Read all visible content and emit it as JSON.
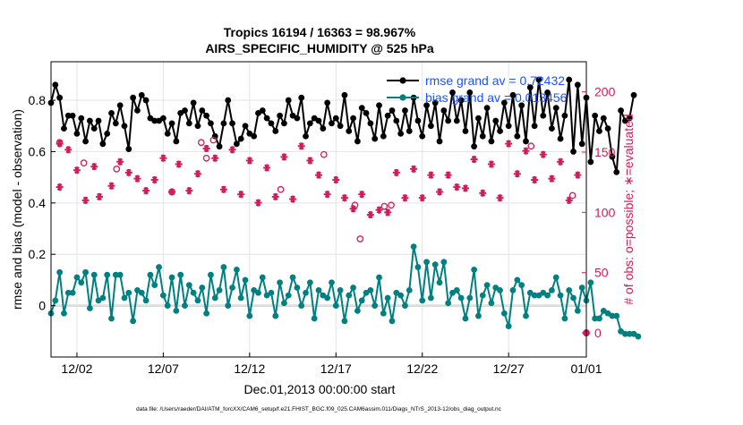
{
  "chart_data": {
    "type": "line",
    "title": "Tropics 16194 / 16363 = 98.967%",
    "subtitle": "AIRS_SPECIFIC_HUMIDITY @ 525 hPa",
    "xlabel": "Dec.01,2013 00:00:00 start",
    "ylabel_left": "rmse and bias (model - observation)",
    "ylabel_right": "# of obs: o=possible; ∗=evaluated",
    "footer": "data file: /Users/raeder/DAI/ATM_forcXX/CAM6_setup/f.e21.FHIST_BGC.f09_025.CAM6assim.011/Diags_NTrS_2013-12/obs_diag_output.nc",
    "xlim": [
      0.5,
      31.5
    ],
    "ylim_left": [
      -0.2,
      0.95
    ],
    "ylim_right": [
      -20,
      225
    ],
    "x_ticks": [
      {
        "x": 2,
        "label": "12/02"
      },
      {
        "x": 7,
        "label": "12/07"
      },
      {
        "x": 12,
        "label": "12/12"
      },
      {
        "x": 17,
        "label": "12/17"
      },
      {
        "x": 22,
        "label": "12/22"
      },
      {
        "x": 27,
        "label": "12/27"
      },
      {
        "x": 32,
        "label": "01/01"
      }
    ],
    "y_ticks_left": [
      {
        "v": 0,
        "label": "0"
      },
      {
        "v": 0.2,
        "label": "0.2"
      },
      {
        "v": 0.4,
        "label": "0.4"
      },
      {
        "v": 0.6,
        "label": "0.6"
      },
      {
        "v": 0.8,
        "label": "0.8"
      }
    ],
    "y_ticks_right": [
      {
        "v": 0,
        "label": "0"
      },
      {
        "v": 50,
        "label": "50"
      },
      {
        "v": 100,
        "label": "100"
      },
      {
        "v": 150,
        "label": "150"
      },
      {
        "v": 200,
        "label": "200"
      }
    ],
    "x_start": 0.5,
    "x_step": 0.25,
    "series": [
      {
        "name": "rmse grand av = 0.72432",
        "color": "#000000",
        "axis": "left",
        "values": [
          0.79,
          0.86,
          0.81,
          0.69,
          0.74,
          0.74,
          0.67,
          0.73,
          0.64,
          0.72,
          0.69,
          0.72,
          0.63,
          0.67,
          0.75,
          0.71,
          0.78,
          0.7,
          0.61,
          0.81,
          0.76,
          0.82,
          0.8,
          0.73,
          0.72,
          0.72,
          0.73,
          0.67,
          0.71,
          0.64,
          0.75,
          0.76,
          0.71,
          0.79,
          0.7,
          0.76,
          0.74,
          0.71,
          0.66,
          0.62,
          0.71,
          0.8,
          0.71,
          0.63,
          0.65,
          0.7,
          0.67,
          0.66,
          0.75,
          0.76,
          0.73,
          0.71,
          0.68,
          0.74,
          0.71,
          0.8,
          0.74,
          0.73,
          0.81,
          0.66,
          0.71,
          0.73,
          0.72,
          0.69,
          0.79,
          0.71,
          0.73,
          0.7,
          0.82,
          0.68,
          0.73,
          0.64,
          0.77,
          0.75,
          0.71,
          0.65,
          0.78,
          0.66,
          0.74,
          0.76,
          0.72,
          0.67,
          0.76,
          0.68,
          0.81,
          0.72,
          0.66,
          0.78,
          0.7,
          0.79,
          0.64,
          0.76,
          0.72,
          0.83,
          0.72,
          0.8,
          0.68,
          0.83,
          0.62,
          0.73,
          0.66,
          0.77,
          0.64,
          0.72,
          0.68,
          0.79,
          0.7,
          0.82,
          0.66,
          0.78,
          0.64,
          0.85,
          0.7,
          0.88,
          0.74,
          0.83,
          0.69,
          0.77,
          0.65,
          0.74,
          0.88,
          0.6,
          0.86,
          0.63,
          0.81,
          0.56,
          0.74,
          0.68,
          0.73,
          0.69,
          0.58,
          0.52,
          0.76,
          0.72,
          0.73,
          0.82
        ]
      },
      {
        "name": "bias grand av = 0.013456",
        "color": "#008080",
        "axis": "left",
        "values": [
          -0.03,
          0.02,
          0.13,
          -0.03,
          0.05,
          0.05,
          0.11,
          0.09,
          0.13,
          -0.01,
          0.12,
          0.02,
          0.03,
          0.12,
          -0.05,
          0.12,
          0.12,
          0.03,
          0.05,
          -0.06,
          0.06,
          0.05,
          0.02,
          0.12,
          0.08,
          0.15,
          0.04,
          0.0,
          0.11,
          -0.02,
          0.12,
          0.0,
          0.08,
          0.05,
          0.02,
          0.07,
          -0.03,
          0.12,
          0.03,
          0.06,
          0.15,
          0.0,
          0.07,
          0.14,
          0.03,
          0.1,
          -0.04,
          0.06,
          0.05,
          0.11,
          0.04,
          0.05,
          -0.04,
          0.09,
          0.01,
          0.04,
          0.11,
          0.07,
          0.0,
          0.05,
          0.09,
          -0.05,
          0.06,
          0.04,
          0.03,
          0.09,
          0.0,
          0.06,
          -0.06,
          0.04,
          0.07,
          -0.02,
          0.02,
          0.05,
          0.06,
          0.0,
          0.11,
          -0.03,
          0.03,
          -0.06,
          0.05,
          0.04,
          0.0,
          0.06,
          0.23,
          0.15,
          0.02,
          0.17,
          0.03,
          0.16,
          0.09,
          0.17,
          0.01,
          0.05,
          0.06,
          0.03,
          -0.05,
          0.03,
          0.14,
          -0.04,
          0.04,
          0.08,
          0.01,
          0.07,
          0.06,
          -0.03,
          -0.08,
          0.06,
          0.1,
          0.08,
          -0.04,
          0.05,
          0.04,
          0.04,
          0.05,
          0.04,
          0.06,
          0.11,
          0.04,
          -0.05,
          0.06,
          0.03,
          -0.02,
          0.07,
          0.02,
          0.09,
          -0.05,
          -0.05,
          -0.02,
          -0.03,
          -0.04,
          -0.04,
          -0.1,
          -0.11,
          -0.11,
          -0.11,
          -0.12
        ]
      }
    ],
    "obs_evaluated": {
      "label": "∗=evaluated",
      "color": "#d01c5a",
      "points": [
        [
          1,
          157
        ],
        [
          1,
          121
        ],
        [
          1.5,
          152
        ],
        [
          2,
          135
        ],
        [
          2.5,
          110
        ],
        [
          3,
          138
        ],
        [
          3.3,
          113
        ],
        [
          4,
          122
        ],
        [
          4.5,
          142
        ],
        [
          5,
          133
        ],
        [
          5.5,
          128
        ],
        [
          6,
          118
        ],
        [
          6.5,
          127
        ],
        [
          7,
          145
        ],
        [
          7.5,
          117
        ],
        [
          7.9,
          140
        ],
        [
          8.5,
          118
        ],
        [
          9,
          132
        ],
        [
          9.5,
          153
        ],
        [
          10,
          145
        ],
        [
          10.5,
          119
        ],
        [
          11,
          152
        ],
        [
          11.5,
          115
        ],
        [
          12,
          143
        ],
        [
          12.5,
          108
        ],
        [
          13,
          137
        ],
        [
          13.5,
          113
        ],
        [
          14,
          146
        ],
        [
          14.5,
          111
        ],
        [
          15,
          155
        ],
        [
          15.5,
          143
        ],
        [
          16,
          131
        ],
        [
          16.5,
          115
        ],
        [
          17,
          127
        ],
        [
          17.5,
          112
        ],
        [
          18,
          103
        ],
        [
          18.5,
          115
        ],
        [
          19,
          98
        ],
        [
          19.5,
          102
        ],
        [
          20,
          100
        ],
        [
          20.5,
          133
        ],
        [
          21,
          112
        ],
        [
          21.5,
          136
        ],
        [
          22,
          112
        ],
        [
          22.5,
          131
        ],
        [
          23,
          117
        ],
        [
          23.5,
          131
        ],
        [
          24,
          121
        ],
        [
          24.5,
          120
        ],
        [
          25,
          144
        ],
        [
          25.5,
          116
        ],
        [
          26,
          140
        ],
        [
          26.5,
          112
        ],
        [
          27,
          157
        ],
        [
          27.5,
          132
        ],
        [
          28,
          151
        ],
        [
          28.5,
          127
        ],
        [
          29,
          148
        ],
        [
          29.5,
          128
        ],
        [
          30,
          142
        ],
        [
          30.5,
          110
        ],
        [
          31,
          131
        ]
      ]
    },
    "obs_possible": {
      "label": "o=possible",
      "color": "#d01c5a",
      "points": [
        [
          1,
          158
        ],
        [
          2.4,
          141
        ],
        [
          4.3,
          136
        ],
        [
          7.5,
          117
        ],
        [
          9.2,
          158
        ],
        [
          9.5,
          145
        ],
        [
          9.9,
          160
        ],
        [
          13.8,
          119
        ],
        [
          16.3,
          148
        ],
        [
          18.1,
          106
        ],
        [
          18.4,
          78
        ],
        [
          19.8,
          105
        ],
        [
          20.2,
          106
        ],
        [
          28.3,
          155
        ],
        [
          30.7,
          114
        ]
      ]
    },
    "right_axis_zero_marker": {
      "x": 31.5,
      "v": 0
    }
  }
}
